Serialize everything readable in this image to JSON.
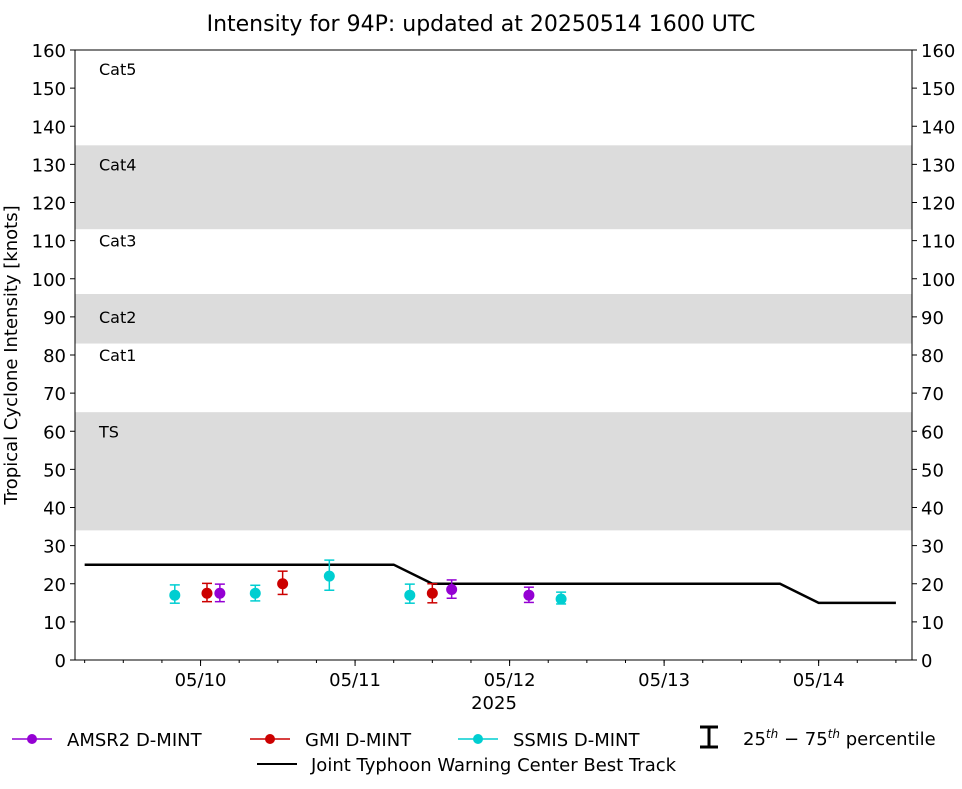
{
  "chart_data": {
    "type": "scatter",
    "title": "Intensity for 94P: updated at 20250514 1600 UTC",
    "xlabel": "2025",
    "ylabel": "Tropical Cyclone Intensity [knots]",
    "ylim": [
      0,
      160
    ],
    "yticks": [
      0,
      10,
      20,
      30,
      40,
      50,
      60,
      70,
      80,
      90,
      100,
      110,
      120,
      130,
      140,
      150,
      160
    ],
    "xlim": [
      "2025-05-09T04:30Z",
      "2025-05-14T14:30Z"
    ],
    "xticks": [
      {
        "t": "2025-05-10T00:00Z",
        "label": "05/10"
      },
      {
        "t": "2025-05-11T00:00Z",
        "label": "05/11"
      },
      {
        "t": "2025-05-12T00:00Z",
        "label": "05/12"
      },
      {
        "t": "2025-05-13T00:00Z",
        "label": "05/13"
      },
      {
        "t": "2025-05-14T00:00Z",
        "label": "05/14"
      }
    ],
    "grid": false,
    "category_bands": [
      {
        "label": "Cat5",
        "label_at": 155,
        "shaded": false
      },
      {
        "label": "Cat4",
        "range": [
          113,
          135
        ],
        "label_at": 130,
        "shaded": true
      },
      {
        "label": "Cat3",
        "label_at": 110,
        "shaded": false
      },
      {
        "label": "Cat2",
        "range": [
          83,
          96
        ],
        "label_at": 90,
        "shaded": true
      },
      {
        "label": "Cat1",
        "label_at": 80,
        "shaded": false
      },
      {
        "label": "TS",
        "range": [
          34,
          65
        ],
        "label_at": 60,
        "shaded": true
      }
    ],
    "band_color": "#dcdcdc",
    "best_track": {
      "name": "Joint Typhoon Warning Center Best Track",
      "color": "#000000",
      "points": [
        {
          "t": "2025-05-09T06:00Z",
          "v": 25
        },
        {
          "t": "2025-05-11T06:00Z",
          "v": 25
        },
        {
          "t": "2025-05-11T12:00Z",
          "v": 20
        },
        {
          "t": "2025-05-13T18:00Z",
          "v": 20
        },
        {
          "t": "2025-05-14T00:00Z",
          "v": 15
        },
        {
          "t": "2025-05-14T12:00Z",
          "v": 15
        }
      ]
    },
    "series": [
      {
        "name": "AMSR2 D-MINT",
        "color": "#9400d3",
        "points": [
          {
            "t": "2025-05-10T03:00Z",
            "v": 17.5,
            "p25": 15.3,
            "p75": 19.9
          },
          {
            "t": "2025-05-11T15:00Z",
            "v": 18.5,
            "p25": 16.2,
            "p75": 21
          },
          {
            "t": "2025-05-12T03:00Z",
            "v": 17,
            "p25": 15.1,
            "p75": 19.1
          }
        ]
      },
      {
        "name": "GMI D-MINT",
        "color": "#cc0000",
        "points": [
          {
            "t": "2025-05-10T01:00Z",
            "v": 17.5,
            "p25": 15.3,
            "p75": 20.1
          },
          {
            "t": "2025-05-10T12:45Z",
            "v": 20,
            "p25": 17.2,
            "p75": 23.3
          },
          {
            "t": "2025-05-11T12:00Z",
            "v": 17.5,
            "p25": 15,
            "p75": 20
          }
        ]
      },
      {
        "name": "SSMIS D-MINT",
        "color": "#00ced1",
        "points": [
          {
            "t": "2025-05-09T20:00Z",
            "v": 17,
            "p25": 14.9,
            "p75": 19.7
          },
          {
            "t": "2025-05-10T08:30Z",
            "v": 17.5,
            "p25": 15.5,
            "p75": 19.6
          },
          {
            "t": "2025-05-10T20:00Z",
            "v": 22,
            "p25": 18.3,
            "p75": 26.2
          },
          {
            "t": "2025-05-11T08:30Z",
            "v": 17,
            "p25": 14.9,
            "p75": 19.9
          },
          {
            "t": "2025-05-12T08:00Z",
            "v": 16,
            "p25": 14.7,
            "p75": 17.8
          }
        ]
      }
    ],
    "legend": {
      "placement": "bottom",
      "percentile_label_prefix": "25",
      "percentile_label_sup1": "th",
      "percentile_label_mid": " − 75",
      "percentile_label_sup2": "th",
      "percentile_label_suffix": " percentile"
    }
  }
}
